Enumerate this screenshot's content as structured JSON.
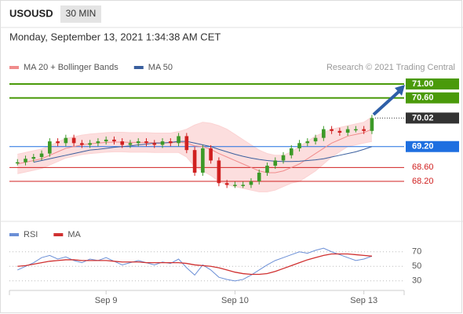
{
  "header": {
    "symbol": "USOUSD",
    "timeframe": "30 MIN",
    "timestamp": "Monday, September 13, 2021 1:34:38 AM CET",
    "copyright": "Research © 2021 Trading Central"
  },
  "chart_data": [
    {
      "type": "candlestick",
      "x": [
        0,
        2,
        4,
        6,
        8,
        10,
        12,
        14,
        16,
        18,
        20,
        22,
        24,
        26,
        28,
        30,
        32,
        34,
        36,
        38,
        40,
        42,
        44,
        46,
        48,
        50,
        52,
        54,
        56,
        58,
        60,
        62,
        64,
        66,
        68,
        70,
        72,
        74,
        76,
        78,
        80,
        82,
        84,
        86,
        88
      ],
      "xlim": [
        -2,
        96
      ],
      "ylim": [
        67.05,
        71.27
      ],
      "close": [
        68.75,
        68.85,
        68.9,
        69.0,
        69.35,
        69.3,
        69.45,
        69.3,
        69.25,
        69.3,
        69.35,
        69.4,
        69.35,
        69.25,
        69.3,
        69.35,
        69.3,
        69.25,
        69.35,
        69.3,
        69.5,
        69.1,
        68.45,
        69.15,
        68.8,
        68.15,
        68.1,
        68.1,
        68.1,
        68.2,
        68.45,
        68.65,
        68.8,
        68.95,
        69.15,
        69.3,
        69.35,
        69.45,
        69.7,
        69.65,
        69.6,
        69.7,
        69.7,
        69.65,
        70.02
      ],
      "up_color": "#3c9a28",
      "down_color": "#d02020",
      "series": [
        {
          "name": "MA 20 + Bollinger Bands",
          "color": "#f08c8c",
          "band_color": "#fbd3d3",
          "values": [
            68.7,
            68.75,
            68.8,
            68.85,
            68.95,
            69.05,
            69.15,
            69.2,
            69.25,
            69.28,
            69.3,
            69.32,
            69.33,
            69.33,
            69.32,
            69.32,
            69.32,
            69.31,
            69.31,
            69.31,
            69.33,
            69.3,
            69.22,
            69.2,
            69.12,
            69.0,
            68.9,
            68.8,
            68.7,
            68.6,
            68.5,
            68.45,
            68.45,
            68.5,
            68.6,
            68.7,
            68.85,
            69.0,
            69.15,
            69.3,
            69.4,
            69.5,
            69.55,
            69.6,
            69.7
          ],
          "upper": [
            68.98,
            69.03,
            69.08,
            69.13,
            69.23,
            69.33,
            69.43,
            69.48,
            69.53,
            69.56,
            69.58,
            69.6,
            69.61,
            69.61,
            69.6,
            69.6,
            69.6,
            69.59,
            69.59,
            69.59,
            69.63,
            69.7,
            69.82,
            69.9,
            69.87,
            69.8,
            69.7,
            69.55,
            69.4,
            69.25,
            69.1,
            69.0,
            68.95,
            68.95,
            69.05,
            69.2,
            69.35,
            69.5,
            69.6,
            69.7,
            69.75,
            69.8,
            69.85,
            69.9,
            70.05
          ],
          "lower": [
            68.42,
            68.47,
            68.52,
            68.57,
            68.67,
            68.77,
            68.87,
            68.92,
            68.97,
            69.0,
            69.02,
            69.04,
            69.05,
            69.05,
            69.04,
            69.04,
            69.04,
            69.03,
            69.03,
            69.03,
            69.03,
            68.9,
            68.62,
            68.5,
            68.37,
            68.2,
            68.1,
            68.05,
            68.0,
            67.95,
            67.9,
            67.9,
            67.95,
            68.05,
            68.15,
            68.2,
            68.35,
            68.5,
            68.7,
            68.9,
            69.05,
            69.2,
            69.25,
            69.3,
            69.35
          ]
        },
        {
          "name": "MA 50",
          "color": "#3a5f9e",
          "values": [
            null,
            null,
            68.75,
            68.8,
            68.85,
            68.9,
            68.95,
            69.0,
            69.05,
            69.1,
            69.12,
            69.15,
            69.18,
            69.2,
            69.22,
            69.25,
            69.27,
            69.3,
            69.3,
            69.32,
            69.35,
            69.35,
            69.3,
            69.25,
            69.2,
            69.12,
            69.05,
            68.98,
            68.92,
            68.87,
            68.83,
            68.8,
            68.78,
            68.77,
            68.77,
            68.78,
            68.8,
            68.82,
            68.85,
            68.9,
            68.95,
            69.0,
            69.05,
            69.12,
            69.2
          ]
        }
      ],
      "levels": [
        {
          "value": 71,
          "label": "71.00",
          "color": "#4a9a0a",
          "line": "solid",
          "filled": true
        },
        {
          "value": 70.6,
          "label": "70.60",
          "color": "#4a9a0a",
          "line": "solid",
          "filled": true
        },
        {
          "value": 70.02,
          "label": "70.02",
          "color": "#333333",
          "line": "dotted",
          "filled": true
        },
        {
          "value": 69.2,
          "label": "69.20",
          "color": "#1e6fe0",
          "line": "solid",
          "filled": true
        },
        {
          "value": 68.6,
          "label": "68.60",
          "color": "#d02020",
          "line": "solid",
          "filled": false
        },
        {
          "value": 68.2,
          "label": "68.20",
          "color": "#d02020",
          "line": "solid",
          "filled": false
        }
      ]
    },
    {
      "type": "line",
      "x": [
        0,
        2,
        4,
        6,
        8,
        10,
        12,
        14,
        16,
        18,
        20,
        22,
        24,
        26,
        28,
        30,
        32,
        34,
        36,
        38,
        40,
        42,
        44,
        46,
        48,
        50,
        52,
        54,
        56,
        58,
        60,
        62,
        64,
        66,
        68,
        70,
        72,
        74,
        76,
        78,
        80,
        82,
        84,
        86,
        88
      ],
      "xlim": [
        -2,
        96
      ],
      "ylim": [
        19,
        87
      ],
      "yticks": [
        30,
        50,
        70
      ],
      "xticks": [
        {
          "value": 22,
          "label": "Sep 9"
        },
        {
          "value": 54,
          "label": "Sep 10"
        },
        {
          "value": 86,
          "label": "Sep 13"
        }
      ],
      "series": [
        {
          "name": "RSI",
          "color": "#6b8fd6",
          "values": [
            45,
            50,
            55,
            62,
            65,
            60,
            63,
            58,
            55,
            60,
            58,
            62,
            57,
            52,
            55,
            58,
            55,
            52,
            56,
            54,
            60,
            48,
            38,
            52,
            45,
            35,
            32,
            30,
            32,
            38,
            45,
            52,
            58,
            62,
            66,
            70,
            68,
            72,
            75,
            70,
            66,
            62,
            58,
            60,
            64
          ]
        },
        {
          "name": "MA",
          "color": "#d03030",
          "values": [
            50,
            51,
            53,
            55,
            57,
            58,
            59,
            59,
            58,
            58,
            58,
            58,
            57,
            56,
            56,
            56,
            55,
            55,
            55,
            55,
            55,
            54,
            52,
            51,
            50,
            48,
            45,
            42,
            40,
            39,
            39,
            40,
            43,
            47,
            51,
            55,
            59,
            62,
            65,
            67,
            67,
            67,
            66,
            65,
            64
          ]
        }
      ]
    }
  ]
}
